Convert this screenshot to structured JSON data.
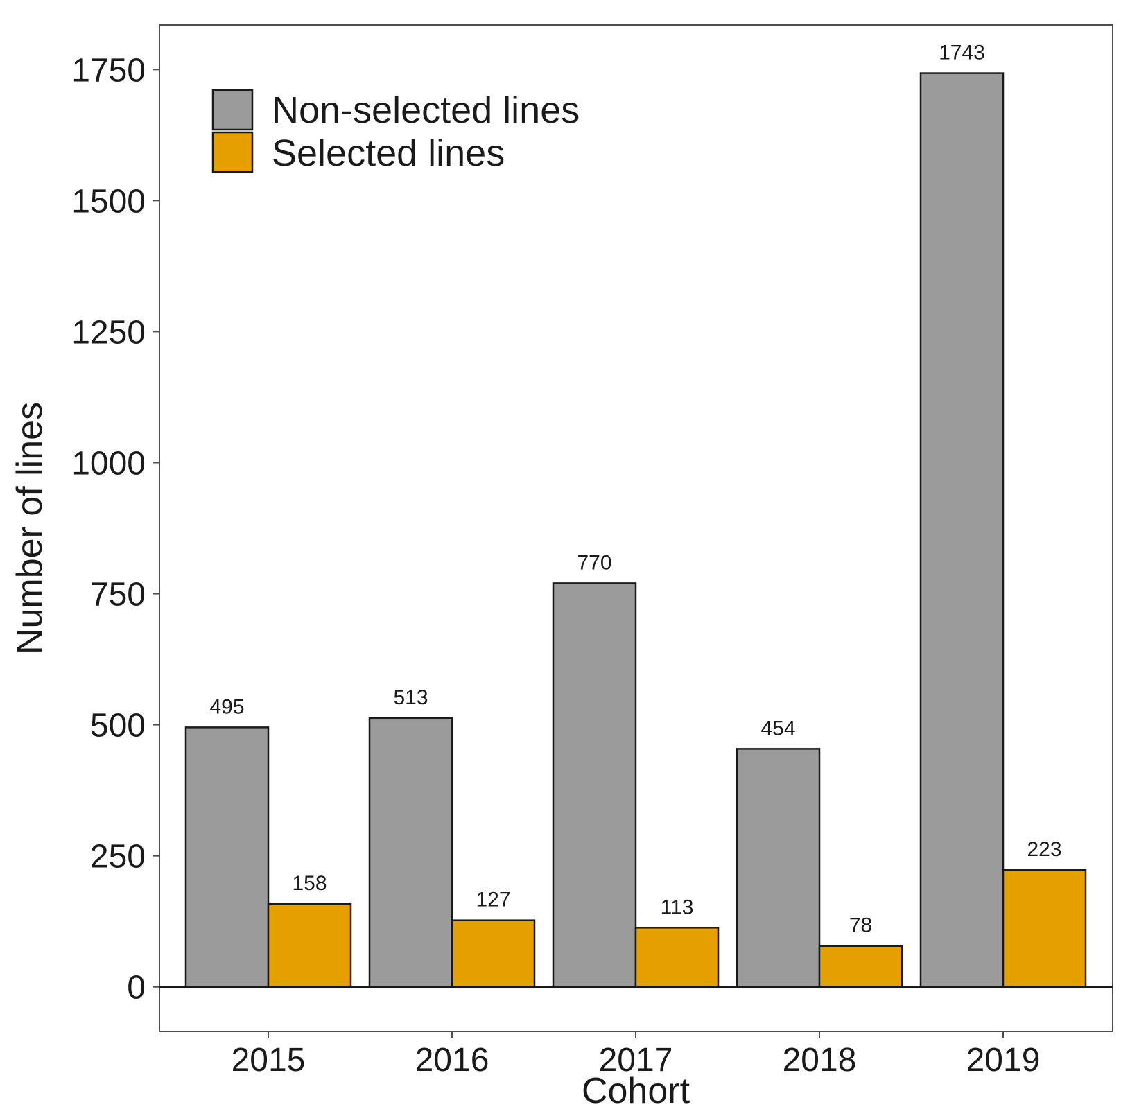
{
  "chart_data": {
    "type": "bar",
    "title": "",
    "xlabel": "Cohort",
    "ylabel": "Number of lines",
    "categories": [
      "2015",
      "2016",
      "2017",
      "2018",
      "2019"
    ],
    "ylim": [
      -85,
      1835
    ],
    "yticks": [
      0,
      250,
      500,
      750,
      1000,
      1250,
      1500,
      1750
    ],
    "grid": false,
    "legend_position": "top-left",
    "series": [
      {
        "name": "Non-selected lines",
        "color": "#9b9b9b",
        "values": [
          495,
          513,
          770,
          454,
          1743
        ]
      },
      {
        "name": "Selected lines",
        "color": "#e5a000",
        "values": [
          158,
          127,
          113,
          78,
          223
        ]
      }
    ]
  }
}
